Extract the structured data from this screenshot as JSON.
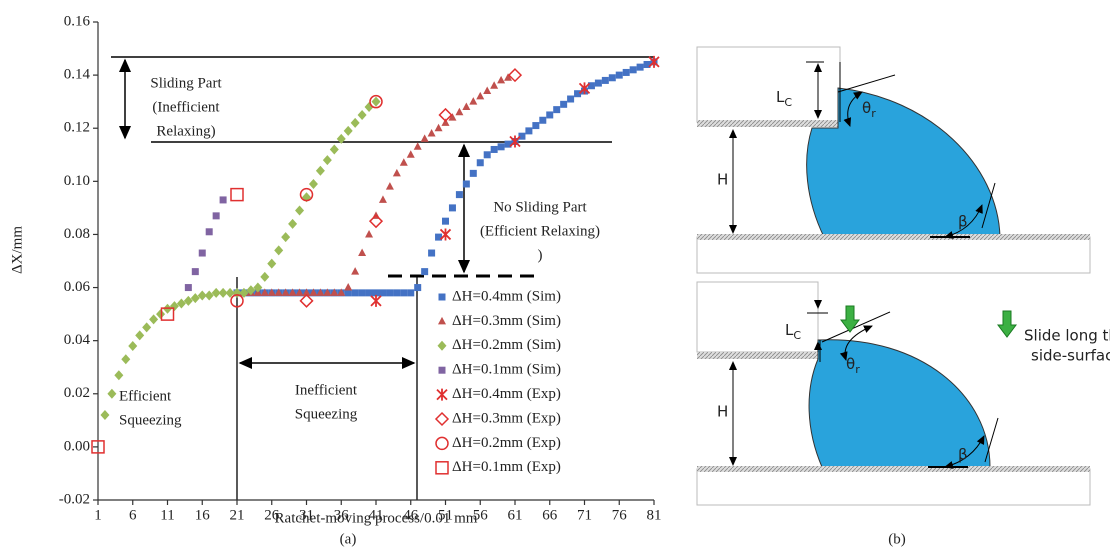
{
  "chart_data": {
    "type": "scatter",
    "x_label": "Ratchet-moving process/0.01 mm",
    "y_label": "ΔX/mm",
    "caption": "(a)",
    "xlim": [
      1,
      81
    ],
    "xticks": [
      1,
      6,
      11,
      16,
      21,
      26,
      31,
      36,
      41,
      46,
      51,
      56,
      61,
      66,
      71,
      76,
      81
    ],
    "ylim": [
      -0.02,
      0.16
    ],
    "yticks": [
      -0.02,
      {
        "value": 0,
        "label": "0.00"
      },
      0.02,
      0.04,
      0.06,
      0.08,
      {
        "value": 0.1,
        "label": "0.10"
      },
      0.12,
      0.14,
      0.16
    ],
    "series": [
      {
        "name": "ΔH=0.4mm (Sim)",
        "color": "#4472c4",
        "marker": "square",
        "x": [
          21,
          22,
          23,
          24,
          25,
          26,
          27,
          28,
          29,
          30,
          31,
          32,
          33,
          34,
          35,
          36,
          37,
          38,
          39,
          40,
          41,
          42,
          43,
          44,
          45,
          46,
          47,
          48,
          49,
          50,
          51,
          52,
          53,
          54,
          55,
          56,
          57,
          58,
          59,
          60,
          61,
          62,
          63,
          64,
          65,
          66,
          67,
          68,
          69,
          70,
          71,
          72,
          73,
          74,
          75,
          76,
          77,
          78,
          79,
          80,
          81
        ],
        "values": [
          0.058,
          0.058,
          0.058,
          0.058,
          0.058,
          0.058,
          0.058,
          0.058,
          0.058,
          0.058,
          0.058,
          0.058,
          0.058,
          0.058,
          0.058,
          0.058,
          0.058,
          0.058,
          0.058,
          0.058,
          0.058,
          0.058,
          0.058,
          0.058,
          0.058,
          0.058,
          0.06,
          0.066,
          0.073,
          0.079,
          0.085,
          0.09,
          0.095,
          0.099,
          0.103,
          0.107,
          0.11,
          0.112,
          0.113,
          0.114,
          0.115,
          0.117,
          0.119,
          0.121,
          0.123,
          0.125,
          0.127,
          0.129,
          0.131,
          0.133,
          0.134,
          0.136,
          0.137,
          0.138,
          0.139,
          0.14,
          0.141,
          0.142,
          0.143,
          0.144,
          0.145
        ]
      },
      {
        "name": "ΔH=0.3mm (Sim)",
        "color": "#c0504d",
        "marker": "triangle",
        "x": [
          21,
          22,
          23,
          24,
          25,
          26,
          27,
          28,
          29,
          30,
          31,
          32,
          33,
          34,
          35,
          36,
          37,
          38,
          39,
          40,
          41,
          42,
          43,
          44,
          45,
          46,
          47,
          48,
          49,
          50,
          51,
          52,
          53,
          54,
          55,
          56,
          57,
          58,
          59,
          60
        ],
        "values": [
          0.058,
          0.058,
          0.058,
          0.058,
          0.058,
          0.058,
          0.058,
          0.058,
          0.058,
          0.058,
          0.058,
          0.058,
          0.058,
          0.058,
          0.058,
          0.058,
          0.06,
          0.066,
          0.073,
          0.08,
          0.087,
          0.093,
          0.098,
          0.103,
          0.107,
          0.11,
          0.113,
          0.116,
          0.118,
          0.12,
          0.122,
          0.124,
          0.126,
          0.128,
          0.13,
          0.132,
          0.134,
          0.136,
          0.138,
          0.139
        ]
      },
      {
        "name": "ΔH=0.2mm (Sim)",
        "color": "#9bbb59",
        "marker": "diamond",
        "x": [
          2,
          3,
          4,
          5,
          6,
          7,
          8,
          9,
          10,
          11,
          12,
          13,
          14,
          15,
          16,
          17,
          18,
          19,
          20,
          21,
          22,
          23,
          24,
          25,
          26,
          27,
          28,
          29,
          30,
          31,
          32,
          33,
          34,
          35,
          36,
          37,
          38,
          39,
          40,
          41
        ],
        "values": [
          0.012,
          0.02,
          0.027,
          0.033,
          0.038,
          0.042,
          0.045,
          0.048,
          0.05,
          0.052,
          0.053,
          0.054,
          0.055,
          0.056,
          0.057,
          0.057,
          0.058,
          0.058,
          0.058,
          0.058,
          0.058,
          0.059,
          0.06,
          0.064,
          0.069,
          0.074,
          0.079,
          0.084,
          0.089,
          0.094,
          0.099,
          0.104,
          0.108,
          0.112,
          0.116,
          0.119,
          0.122,
          0.125,
          0.128,
          0.13
        ]
      },
      {
        "name": "ΔH=0.1mm (Sim)",
        "color": "#8064a2",
        "marker": "square",
        "x": [
          14,
          15,
          16,
          17,
          18,
          19
        ],
        "values": [
          0.06,
          0.066,
          0.073,
          0.081,
          0.087,
          0.093
        ]
      },
      {
        "name": "ΔH=0.4mm (Exp)",
        "color": "#e03030",
        "marker": "star",
        "x": [
          41,
          51,
          61,
          71,
          81
        ],
        "values": [
          0.055,
          0.08,
          0.115,
          0.135,
          0.145
        ]
      },
      {
        "name": "ΔH=0.3mm (Exp)",
        "color": "#e03030",
        "marker": "open-diamond",
        "x": [
          31,
          41,
          51,
          61
        ],
        "values": [
          0.055,
          0.085,
          0.125,
          0.14
        ]
      },
      {
        "name": "ΔH=0.2mm (Exp)",
        "color": "#e03030",
        "marker": "open-circle",
        "x": [
          21,
          31,
          41
        ],
        "values": [
          0.055,
          0.095,
          0.13
        ]
      },
      {
        "name": "ΔH=0.1mm (Exp)",
        "color": "#e03030",
        "marker": "open-square",
        "x": [
          1,
          11,
          21
        ],
        "values": [
          0,
          0.05,
          0.095
        ]
      }
    ],
    "annotations": [
      {
        "lines": [
          "Sliding Part",
          "(Inefficient",
          "Relaxing)"
        ]
      },
      {
        "lines": [
          "No Sliding Part",
          "(Efficient Relaxing)",
          ")"
        ]
      },
      {
        "lines": [
          "Efficient",
          "Squeezing"
        ]
      },
      {
        "lines": [
          "Inefficient",
          "Squeezing"
        ]
      }
    ]
  },
  "diagram": {
    "caption": "(b)",
    "top": {
      "lc": {
        "main": "L",
        "sub": "C"
      },
      "theta": {
        "main": "θ",
        "sub": "r"
      },
      "h": "H",
      "beta": "β"
    },
    "bottom": {
      "lc": {
        "main": "L",
        "sub": "C"
      },
      "theta": {
        "main": "θ",
        "sub": "r"
      },
      "h": "H",
      "beta": "β"
    },
    "note": [
      "Slide long the",
      "side-surface"
    ]
  }
}
